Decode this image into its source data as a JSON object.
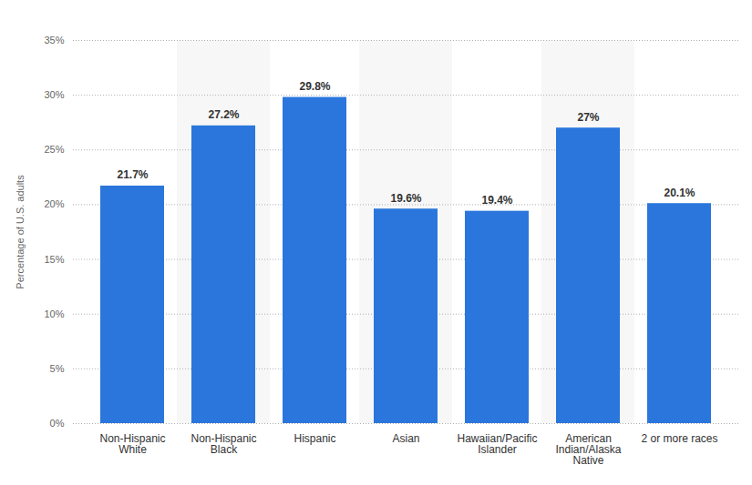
{
  "chart_data": {
    "type": "bar",
    "y_label": "Percentage of U.S. adults",
    "categories": [
      "Non-Hispanic White",
      "Non-Hispanic Black",
      "Hispanic",
      "Asian",
      "Hawaiian/Pacific Islander",
      "American Indian/Alaska Native",
      "2 or more races"
    ],
    "values": [
      21.7,
      27.2,
      29.8,
      19.6,
      19.4,
      27,
      20.1
    ],
    "value_labels": [
      "21.7%",
      "27.2%",
      "29.8%",
      "19.6%",
      "19.4%",
      "27%",
      "20.1%"
    ],
    "color": "#2a76dc",
    "ylim": [
      0,
      35
    ],
    "yticks": [
      {
        "value": 0,
        "label": "0%"
      },
      {
        "value": 5,
        "label": "5%"
      },
      {
        "value": 10,
        "label": "10%"
      },
      {
        "value": 15,
        "label": "15%"
      },
      {
        "value": 20,
        "label": "20%"
      },
      {
        "value": 25,
        "label": "25%"
      },
      {
        "value": 30,
        "label": "30%"
      },
      {
        "value": 35,
        "label": "35%"
      }
    ],
    "grid": true,
    "data_labels": true
  }
}
